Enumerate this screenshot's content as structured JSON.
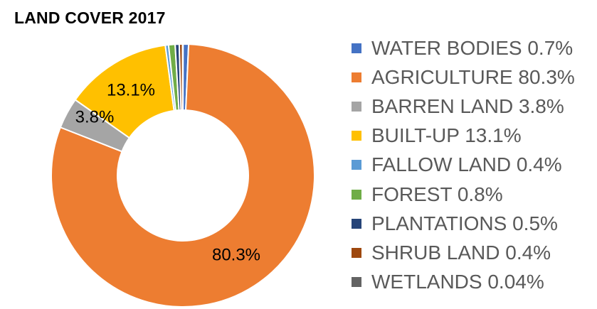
{
  "chart_data": {
    "type": "pie",
    "title": "LAND COVER 2017",
    "donut": true,
    "legend_position": "right",
    "slices": [
      {
        "name": "WATER BODIES",
        "value": 0.7,
        "color": "#4472C4",
        "legend": "WATER BODIES 0.7%",
        "data_label": ""
      },
      {
        "name": "AGRICULTURE",
        "value": 80.3,
        "color": "#ED7D31",
        "legend": "AGRICULTURE 80.3%",
        "data_label": "80.3%"
      },
      {
        "name": "BARREN LAND",
        "value": 3.8,
        "color": "#A5A5A5",
        "legend": "BARREN LAND 3.8%",
        "data_label": "3.8%"
      },
      {
        "name": "BUILT-UP",
        "value": 13.1,
        "color": "#FFC000",
        "legend": "BUILT-UP 13.1%",
        "data_label": "13.1%"
      },
      {
        "name": "FALLOW LAND",
        "value": 0.4,
        "color": "#5B9BD5",
        "legend": "FALLOW LAND 0.4%",
        "data_label": ""
      },
      {
        "name": "FOREST",
        "value": 0.8,
        "color": "#70AD47",
        "legend": "FOREST 0.8%",
        "data_label": ""
      },
      {
        "name": "PLANTATIONS",
        "value": 0.5,
        "color": "#264478",
        "legend": "PLANTATIONS 0.5%",
        "data_label": ""
      },
      {
        "name": "SHRUB LAND",
        "value": 0.4,
        "color": "#9E480E",
        "legend": "SHRUB LAND 0.4%",
        "data_label": ""
      },
      {
        "name": "WETLANDS",
        "value": 0.04,
        "color": "#636363",
        "legend": "WETLANDS 0.04%",
        "data_label": ""
      }
    ]
  }
}
